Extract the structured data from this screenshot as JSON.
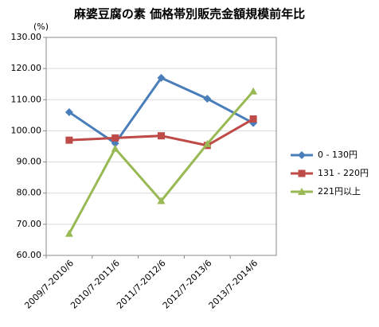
{
  "chart_data": {
    "type": "line",
    "title": "麻婆豆腐の素 価格帯別販売金額規模前年比",
    "y_label": "(%)",
    "categories": [
      "2009/7-2010/6",
      "2010/7-2011/6",
      "2011/7-2012/6",
      "2012/7-2013/6",
      "2013/7-2014/6"
    ],
    "series": [
      {
        "name": "0 - 130円",
        "color": "#4a7ebb",
        "marker": "diamond",
        "values": [
          106,
          96,
          117,
          110.3,
          102.5
        ]
      },
      {
        "name": "131 - 220円",
        "color": "#be4b48",
        "marker": "square",
        "values": [
          97,
          97.7,
          98.4,
          95.3,
          103.8
        ]
      },
      {
        "name": "221円以上",
        "color": "#98b954",
        "marker": "triangle",
        "values": [
          67,
          94.3,
          77.5,
          95.8,
          112.7
        ]
      }
    ],
    "ylim": [
      60,
      130
    ],
    "yticks": [
      {
        "value": 60,
        "label": "60.00"
      },
      {
        "value": 70,
        "label": "70.00"
      },
      {
        "value": 80,
        "label": "80.00"
      },
      {
        "value": 90,
        "label": "90.00"
      },
      {
        "value": 100,
        "label": "100.00"
      },
      {
        "value": 110,
        "label": "110.00"
      },
      {
        "value": 120,
        "label": "120.00"
      },
      {
        "value": 130,
        "label": "130.00"
      }
    ],
    "grid": true,
    "legend": "right"
  }
}
